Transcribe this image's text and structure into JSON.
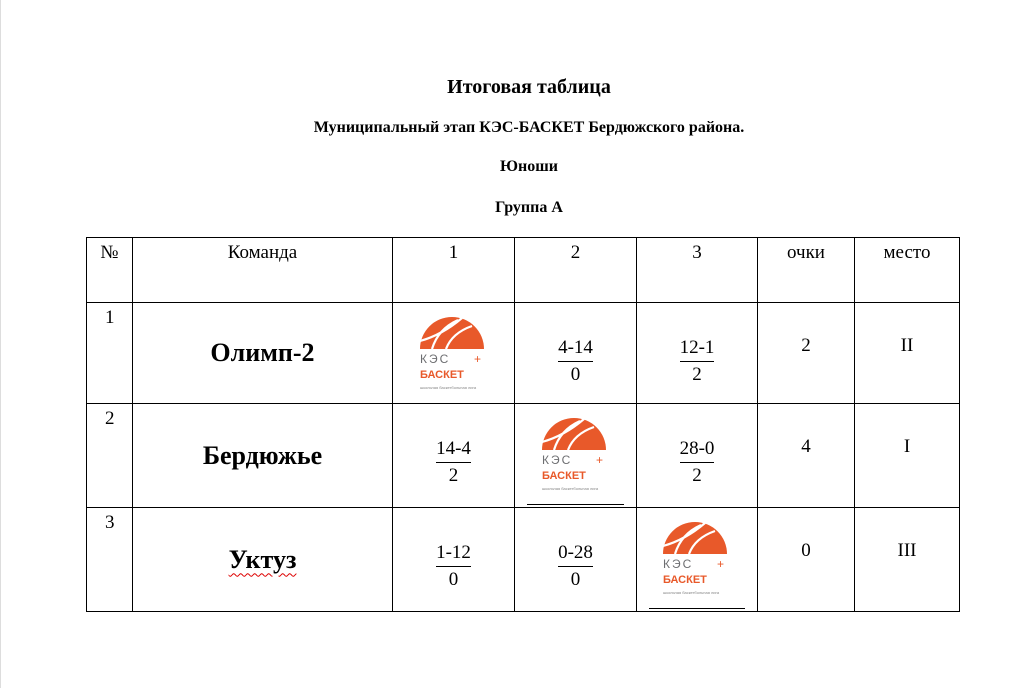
{
  "title": "Итоговая таблица",
  "subtitle": "Муниципальный этап КЭС-БАСКЕТ Бердюжского района.",
  "category": "Юноши",
  "group": "Группа А",
  "logo": {
    "text_top": "КЭС",
    "text_bottom": "БАСКЕТ",
    "tagline": "школьная баскетбольная лига",
    "color_orange": "#e8592a",
    "color_gray": "#6d6e71"
  },
  "table": {
    "headers": [
      "№",
      "Команда",
      "1",
      "2",
      "3",
      "очки",
      "место"
    ],
    "rows": [
      {
        "num": "1",
        "team": "Олимп-2",
        "cells": [
          null,
          {
            "score": "4-14",
            "pts": "0"
          },
          {
            "score": "12-1",
            "pts": "2"
          }
        ],
        "points": "2",
        "place": "II"
      },
      {
        "num": "2",
        "team": "Бердюжье",
        "cells": [
          {
            "score": "14-4",
            "pts": "2"
          },
          null,
          {
            "score": "28-0",
            "pts": "2"
          }
        ],
        "points": "4",
        "place": "I"
      },
      {
        "num": "3",
        "team": "Уктуз",
        "cells": [
          {
            "score": "1-12",
            "pts": "0"
          },
          {
            "score": "0-28",
            "pts": "0"
          },
          null
        ],
        "points": "0",
        "place": "III"
      }
    ]
  }
}
